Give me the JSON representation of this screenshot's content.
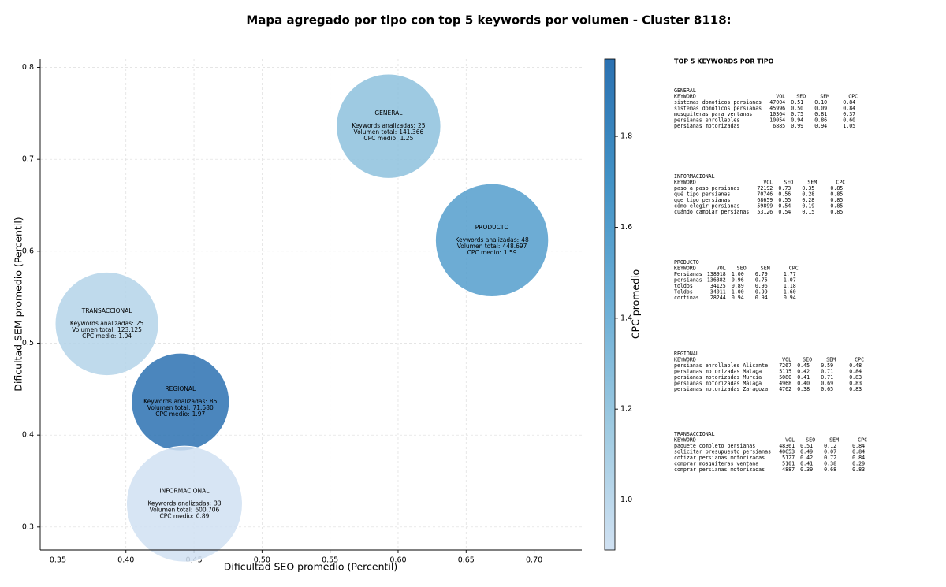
{
  "chart_data": {
    "type": "bubble",
    "title": "Mapa agregado por tipo con top 5 keywords por volumen - Cluster 8118:",
    "x_label": "Dificultad SEO promedio (Percentil)",
    "y_label": "Dificultad SEM promedio (Percentil)",
    "xlim": [
      0.337,
      0.735
    ],
    "ylim": [
      0.275,
      0.809
    ],
    "xticks": [
      0.35,
      {
        "value": 0.4,
        "label": "0.40"
      },
      0.45,
      {
        "value": 0.5,
        "label": "0.50"
      },
      0.55,
      {
        "value": 0.6,
        "label": "0.60"
      },
      0.65,
      {
        "value": 0.7,
        "label": "0.70"
      }
    ],
    "yticks": [
      0.3,
      0.4,
      0.5,
      0.6,
      0.7,
      0.8
    ],
    "grid": true,
    "bubble_text": {
      "keywords": "Keywords analizadas:",
      "volume": "Volumen total:",
      "cpc": "CPC medio:"
    },
    "points": [
      {
        "name": "GENERAL",
        "x": 0.593,
        "y": 0.736,
        "keywords": 25,
        "volume": 141366,
        "volume_label": "141.366",
        "cpc": 1.25
      },
      {
        "name": "PRODUCTO",
        "x": 0.669,
        "y": 0.612,
        "keywords": 48,
        "volume": 448697,
        "volume_label": "448.697",
        "cpc": 1.59
      },
      {
        "name": "TRANSACCIONAL",
        "x": 0.386,
        "y": 0.521,
        "keywords": 25,
        "volume": 123125,
        "volume_label": "123.125",
        "cpc": 1.04
      },
      {
        "name": "REGIONAL",
        "x": 0.44,
        "y": 0.436,
        "keywords": 85,
        "volume": 71580,
        "volume_label": "71.580",
        "cpc": 1.97
      },
      {
        "name": "INFORMACIONAL",
        "x": 0.443,
        "y": 0.325,
        "keywords": 33,
        "volume": 600706,
        "volume_label": "600.706",
        "cpc": 0.89
      }
    ],
    "colorbar": {
      "label": "CPC promedio",
      "clim": [
        0.89,
        1.97
      ],
      "ticks": [
        {
          "value": 1.0,
          "label": "1.0"
        },
        1.2,
        1.4,
        1.6,
        1.8
      ],
      "colormap": [
        "#d0e1f2",
        "#9ecae1",
        "#6baed6",
        "#4292c6",
        "#2b71b1"
      ]
    },
    "keyword_panel": {
      "title": "TOP 5 KEYWORDS POR TIPO",
      "header": [
        "KEYWORD",
        "VOL",
        "SEO",
        "SEM",
        "CPC"
      ],
      "sections": [
        {
          "name": "GENERAL",
          "rows": [
            [
              "sistemas domoticos persianas",
              "47004",
              "0.51",
              "0.10",
              "0.84"
            ],
            [
              "sistemas domóticos persianas",
              "45996",
              "0.50",
              "0.09",
              "0.84"
            ],
            [
              "mosquiteras para ventanas",
              "10364",
              "0.75",
              "0.81",
              "0.37"
            ],
            [
              "persianas enrollables",
              "10054",
              "0.94",
              "0.86",
              "0.60"
            ],
            [
              "persianas motorizadas",
              "6885",
              "0.99",
              "0.94",
              "1.05"
            ]
          ]
        },
        {
          "name": "INFORMACIONAL",
          "rows": [
            [
              "paso a paso persianas",
              "72192",
              "0.73",
              "0.35",
              "0.85"
            ],
            [
              "qué tipo persianas",
              "70746",
              "0.56",
              "0.28",
              "0.85"
            ],
            [
              "que tipo persianas",
              "68659",
              "0.55",
              "0.28",
              "0.85"
            ],
            [
              "cómo elegir persianas",
              "59899",
              "0.54",
              "0.19",
              "0.85"
            ],
            [
              "cuándo cambiar persianas",
              "53126",
              "0.54",
              "0.15",
              "0.85"
            ]
          ]
        },
        {
          "name": "PRODUCTO",
          "rows": [
            [
              "Persianas",
              "138918",
              "1.00",
              "0.79",
              "1.77"
            ],
            [
              "persianas",
              "136382",
              "0.96",
              "0.75",
              "1.07"
            ],
            [
              "toldos",
              "34125",
              "0.89",
              "0.96",
              "1.18"
            ],
            [
              "Toldos",
              "34011",
              "1.00",
              "0.99",
              "1.60"
            ],
            [
              "cortinas",
              "28244",
              "0.94",
              "0.94",
              "0.94"
            ]
          ]
        },
        {
          "name": "REGIONAL",
          "rows": [
            [
              "persianas enrollables Alicante",
              "7267",
              "0.45",
              "0.59",
              "0.48"
            ],
            [
              "persianas motorizadas Malaga",
              "5115",
              "0.42",
              "0.71",
              "0.84"
            ],
            [
              "persianas motorizadas Murcia",
              "5080",
              "0.41",
              "0.71",
              "0.83"
            ],
            [
              "persianas motorizadas Málaga",
              "4968",
              "0.40",
              "0.69",
              "0.83"
            ],
            [
              "persianas motorizadas Zaragoza",
              "4762",
              "0.38",
              "0.65",
              "0.83"
            ]
          ]
        },
        {
          "name": "TRANSACCIONAL",
          "rows": [
            [
              "paquete completo persianas",
              "48361",
              "0.51",
              "0.12",
              "0.84"
            ],
            [
              "solicitar presupuesto persianas",
              "40653",
              "0.49",
              "0.07",
              "0.84"
            ],
            [
              "cotizar persianas motorizadas",
              "5127",
              "0.42",
              "0.72",
              "0.84"
            ],
            [
              "comprar mosquiteras ventana",
              "5101",
              "0.41",
              "0.38",
              "0.29"
            ],
            [
              "comprar persianas motorizadas",
              "4887",
              "0.39",
              "0.68",
              "0.83"
            ]
          ]
        }
      ]
    }
  }
}
